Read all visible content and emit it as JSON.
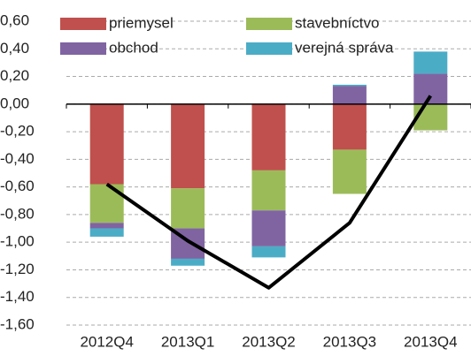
{
  "chart_data": {
    "type": "bar",
    "stacked": true,
    "categories": [
      "2012Q4",
      "2013Q1",
      "2013Q2",
      "2013Q3",
      "2013Q4"
    ],
    "series": [
      {
        "name": "priemysel",
        "color": "#c0504d",
        "values": [
          -0.58,
          -0.61,
          -0.48,
          -0.33,
          0.0
        ]
      },
      {
        "name": "stavebníctvo",
        "color": "#9bbb59",
        "values": [
          -0.28,
          -0.29,
          -0.29,
          -0.32,
          -0.19
        ]
      },
      {
        "name": "obchod",
        "color": "#8064a2",
        "values": [
          -0.04,
          -0.22,
          -0.26,
          0.13,
          0.22
        ]
      },
      {
        "name": "verejná správa",
        "color": "#4bacc6",
        "values": [
          -0.06,
          -0.05,
          -0.08,
          0.01,
          0.16
        ]
      }
    ],
    "line": {
      "color": "#000000",
      "values": [
        -0.58,
        -0.99,
        -1.33,
        -0.86,
        0.06
      ]
    },
    "ylim": [
      -1.6,
      0.6
    ],
    "yticks": [
      {
        "value": -1.6,
        "label": "-1,60"
      },
      {
        "value": -1.4,
        "label": "-1,40"
      },
      {
        "value": -1.2,
        "label": "-1,20"
      },
      {
        "value": -1.0,
        "label": "-1,00"
      },
      {
        "value": -0.8,
        "label": "-0,80"
      },
      {
        "value": -0.6,
        "label": "-0,60"
      },
      {
        "value": -0.4,
        "label": "-0,40"
      },
      {
        "value": -0.2,
        "label": "-0,20"
      },
      {
        "value": 0.0,
        "label": "0,00"
      },
      {
        "value": 0.2,
        "label": "0,20"
      },
      {
        "value": 0.4,
        "label": "0,40"
      },
      {
        "value": 0.6,
        "label": "0,60"
      }
    ],
    "grid": true,
    "legend": "top"
  }
}
